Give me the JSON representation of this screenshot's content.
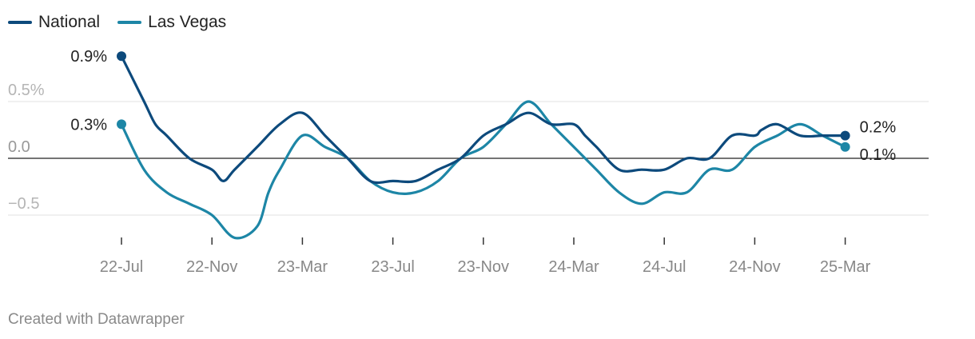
{
  "chart_data": {
    "type": "line",
    "legend_position": "top-left",
    "series": [
      {
        "name": "National",
        "color": "#0d4a7c",
        "x": [
          0,
          1,
          1.5,
          2,
          3,
          4,
          4.5,
          5,
          6,
          7,
          8,
          9,
          10,
          11,
          12,
          13,
          14,
          15,
          16,
          17,
          18,
          19,
          20,
          20.5,
          21,
          22,
          23,
          24,
          25,
          26,
          27,
          28,
          28.3,
          29,
          30,
          31,
          31.3,
          32
        ],
        "values": [
          0.9,
          0.5,
          0.3,
          0.2,
          0.0,
          -0.1,
          -0.2,
          -0.1,
          0.1,
          0.3,
          0.4,
          0.2,
          0.0,
          -0.2,
          -0.2,
          -0.2,
          -0.1,
          0.0,
          0.2,
          0.3,
          0.4,
          0.3,
          0.3,
          0.2,
          0.1,
          -0.1,
          -0.1,
          -0.1,
          0.0,
          0.0,
          0.2,
          0.2,
          0.25,
          0.3,
          0.2,
          0.2,
          0.2,
          0.2
        ],
        "start_label": "0.9%",
        "end_label": "0.2%"
      },
      {
        "name": "Las Vegas",
        "color": "#1d86a6",
        "x": [
          0,
          1,
          2,
          3,
          4,
          5,
          6,
          6.5,
          7,
          8,
          9,
          10,
          11,
          12,
          13,
          14,
          15,
          16,
          17,
          18,
          19,
          20,
          21,
          22,
          23,
          24,
          25,
          26,
          27,
          28,
          29,
          30,
          31,
          32
        ],
        "values": [
          0.3,
          -0.1,
          -0.3,
          -0.4,
          -0.5,
          -0.7,
          -0.6,
          -0.3,
          -0.1,
          0.2,
          0.1,
          0.0,
          -0.2,
          -0.3,
          -0.3,
          -0.2,
          0.0,
          0.1,
          0.3,
          0.5,
          0.3,
          0.1,
          -0.1,
          -0.3,
          -0.4,
          -0.3,
          -0.3,
          -0.1,
          -0.1,
          0.1,
          0.2,
          0.3,
          0.2,
          0.1
        ],
        "start_label": "0.3%",
        "end_label": "0.1%"
      }
    ],
    "y_ticks": [
      {
        "value": 0.5,
        "label": "0.5%"
      },
      {
        "value": 0.0,
        "label": "0.0"
      },
      {
        "value": -0.5,
        "label": "−0.5"
      }
    ],
    "x_ticks": [
      {
        "value": 0,
        "label": "22-Jul"
      },
      {
        "value": 4,
        "label": "22-Nov"
      },
      {
        "value": 8,
        "label": "23-Mar"
      },
      {
        "value": 12,
        "label": "23-Jul"
      },
      {
        "value": 16,
        "label": "23-Nov"
      },
      {
        "value": 20,
        "label": "24-Mar"
      },
      {
        "value": 24,
        "label": "24-Jul"
      },
      {
        "value": 28,
        "label": "24-Nov"
      },
      {
        "value": 32,
        "label": "25-Mar"
      }
    ],
    "ylim": [
      -0.7,
      1.0
    ],
    "xlim": [
      0,
      35
    ],
    "zero_line": true,
    "grid": true
  },
  "footer": {
    "credit": "Created with Datawrapper"
  }
}
